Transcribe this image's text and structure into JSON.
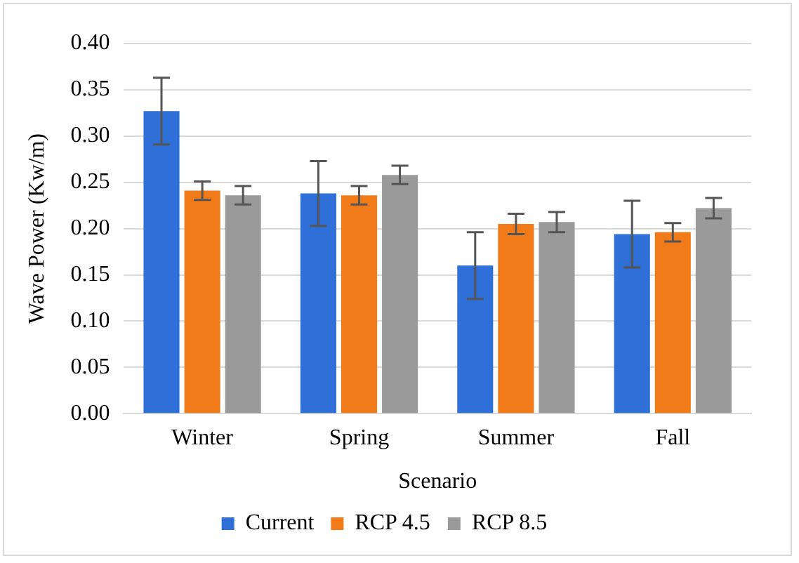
{
  "chart_data": {
    "type": "bar",
    "xlabel": "Scenario",
    "ylabel": "Wave Power (Kw/m)",
    "categories": [
      "Winter",
      "Spring",
      "Summer",
      "Fall"
    ],
    "series": [
      {
        "name": "Current",
        "color": "#2e6fd8",
        "values": [
          0.327,
          0.238,
          0.16,
          0.194
        ],
        "errors": [
          0.036,
          0.035,
          0.036,
          0.036
        ]
      },
      {
        "name": "RCP 4.5",
        "color": "#f07b18",
        "values": [
          0.241,
          0.236,
          0.205,
          0.196
        ],
        "errors": [
          0.01,
          0.01,
          0.011,
          0.01
        ]
      },
      {
        "name": "RCP 8.5",
        "color": "#9a9a9a",
        "values": [
          0.236,
          0.258,
          0.207,
          0.222
        ],
        "errors": [
          0.01,
          0.01,
          0.011,
          0.011
        ]
      }
    ],
    "ylim": [
      0,
      0.4
    ],
    "yticks": [
      {
        "value": 0,
        "label": "0.00"
      },
      {
        "value": 0.05,
        "label": "0.05"
      },
      {
        "value": 0.1,
        "label": "0.10"
      },
      {
        "value": 0.15,
        "label": "0.15"
      },
      {
        "value": 0.2,
        "label": "0.20"
      },
      {
        "value": 0.25,
        "label": "0.25"
      },
      {
        "value": 0.3,
        "label": "0.30"
      },
      {
        "value": 0.35,
        "label": "0.35"
      },
      {
        "value": 0.4,
        "label": "0.40"
      }
    ],
    "grid": "y",
    "legend": "bottom"
  }
}
